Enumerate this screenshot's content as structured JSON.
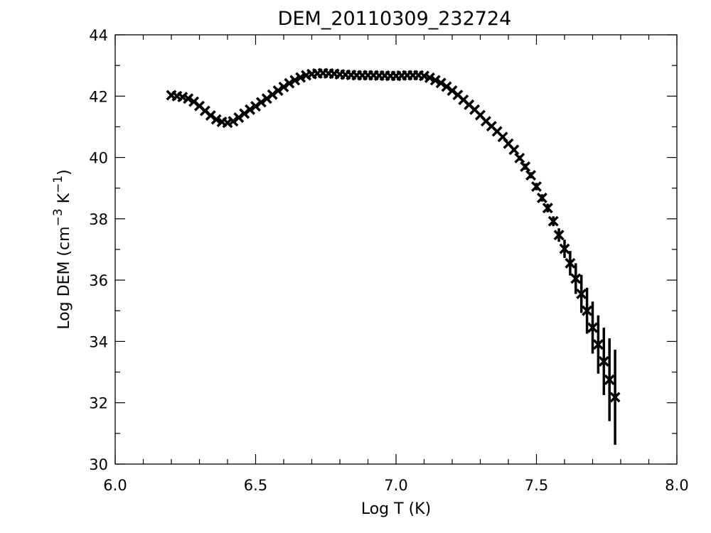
{
  "chart_data": {
    "type": "scatter",
    "title": "DEM_20110309_232724",
    "xlabel": "Log T (K)",
    "ylabel": {
      "prefix": "Log DEM (cm",
      "sup1": "−3",
      "mid": " K",
      "sup2": "−1",
      "suffix": ")"
    },
    "xlim": [
      6.0,
      8.0
    ],
    "ylim": [
      30,
      44
    ],
    "xticks": [
      {
        "value": 6.0,
        "label": "6.0"
      },
      {
        "value": 6.5,
        "label": "6.5"
      },
      {
        "value": 7.0,
        "label": "7.0"
      },
      {
        "value": 7.5,
        "label": "7.5"
      },
      {
        "value": 8.0,
        "label": "8.0"
      }
    ],
    "yticks": [
      {
        "value": 30,
        "label": "30"
      },
      {
        "value": 32,
        "label": "32"
      },
      {
        "value": 34,
        "label": "34"
      },
      {
        "value": 36,
        "label": "36"
      },
      {
        "value": 38,
        "label": "38"
      },
      {
        "value": 40,
        "label": "40"
      },
      {
        "value": 42,
        "label": "42"
      },
      {
        "value": 44,
        "label": "44"
      }
    ],
    "x_minor_step": 0.1,
    "y_minor_step": 1,
    "grid": false,
    "marker": "x",
    "color": "#000000",
    "points": [
      [
        6.2,
        42.03,
        0.03
      ],
      [
        6.22,
        42.0,
        0.03
      ],
      [
        6.24,
        41.97,
        0.03
      ],
      [
        6.26,
        41.92,
        0.03
      ],
      [
        6.28,
        41.82,
        0.03
      ],
      [
        6.3,
        41.68,
        0.03
      ],
      [
        6.32,
        41.52,
        0.03
      ],
      [
        6.34,
        41.37,
        0.03
      ],
      [
        6.36,
        41.24,
        0.03
      ],
      [
        6.38,
        41.16,
        0.03
      ],
      [
        6.4,
        41.13,
        0.03
      ],
      [
        6.42,
        41.18,
        0.03
      ],
      [
        6.44,
        41.3,
        0.03
      ],
      [
        6.46,
        41.43,
        0.03
      ],
      [
        6.48,
        41.56,
        0.03
      ],
      [
        6.5,
        41.67,
        0.03
      ],
      [
        6.52,
        41.8,
        0.03
      ],
      [
        6.54,
        41.92,
        0.03
      ],
      [
        6.56,
        42.05,
        0.03
      ],
      [
        6.58,
        42.18,
        0.03
      ],
      [
        6.6,
        42.3,
        0.03
      ],
      [
        6.62,
        42.42,
        0.03
      ],
      [
        6.64,
        42.52,
        0.03
      ],
      [
        6.66,
        42.61,
        0.03
      ],
      [
        6.68,
        42.68,
        0.03
      ],
      [
        6.7,
        42.72,
        0.03
      ],
      [
        6.72,
        42.74,
        0.03
      ],
      [
        6.74,
        42.75,
        0.03
      ],
      [
        6.76,
        42.74,
        0.03
      ],
      [
        6.78,
        42.73,
        0.03
      ],
      [
        6.8,
        42.71,
        0.03
      ],
      [
        6.82,
        42.7,
        0.03
      ],
      [
        6.84,
        42.69,
        0.03
      ],
      [
        6.86,
        42.68,
        0.03
      ],
      [
        6.88,
        42.68,
        0.03
      ],
      [
        6.9,
        42.68,
        0.03
      ],
      [
        6.92,
        42.68,
        0.03
      ],
      [
        6.94,
        42.67,
        0.03
      ],
      [
        6.96,
        42.67,
        0.03
      ],
      [
        6.98,
        42.66,
        0.03
      ],
      [
        7.0,
        42.66,
        0.03
      ],
      [
        7.02,
        42.67,
        0.03
      ],
      [
        7.04,
        42.68,
        0.03
      ],
      [
        7.06,
        42.68,
        0.03
      ],
      [
        7.08,
        42.68,
        0.03
      ],
      [
        7.1,
        42.66,
        0.03
      ],
      [
        7.12,
        42.6,
        0.03
      ],
      [
        7.14,
        42.52,
        0.03
      ],
      [
        7.16,
        42.43,
        0.03
      ],
      [
        7.18,
        42.31,
        0.03
      ],
      [
        7.2,
        42.18,
        0.03
      ],
      [
        7.22,
        42.04,
        0.03
      ],
      [
        7.24,
        41.88,
        0.03
      ],
      [
        7.26,
        41.72,
        0.03
      ],
      [
        7.28,
        41.56,
        0.03
      ],
      [
        7.3,
        41.38,
        0.03
      ],
      [
        7.32,
        41.18,
        0.05
      ],
      [
        7.34,
        41.02,
        0.05
      ],
      [
        7.36,
        40.85,
        0.05
      ],
      [
        7.38,
        40.67,
        0.06
      ],
      [
        7.4,
        40.45,
        0.06
      ],
      [
        7.42,
        40.25,
        0.07
      ],
      [
        7.44,
        39.98,
        0.08
      ],
      [
        7.46,
        39.7,
        0.1
      ],
      [
        7.48,
        39.42,
        0.1
      ],
      [
        7.5,
        39.05,
        0.12
      ],
      [
        7.52,
        38.68,
        0.12
      ],
      [
        7.54,
        38.35,
        0.14
      ],
      [
        7.56,
        37.92,
        0.16
      ],
      [
        7.58,
        37.47,
        0.22
      ],
      [
        7.6,
        37.02,
        0.3
      ],
      [
        7.62,
        36.55,
        0.4
      ],
      [
        7.64,
        36.05,
        0.5
      ],
      [
        7.66,
        35.55,
        0.62
      ],
      [
        7.68,
        35.0,
        0.75
      ],
      [
        7.7,
        34.45,
        0.85
      ],
      [
        7.72,
        33.9,
        0.95
      ],
      [
        7.74,
        33.35,
        1.1
      ],
      [
        7.76,
        32.75,
        1.35
      ],
      [
        7.78,
        32.18,
        1.55
      ]
    ]
  }
}
